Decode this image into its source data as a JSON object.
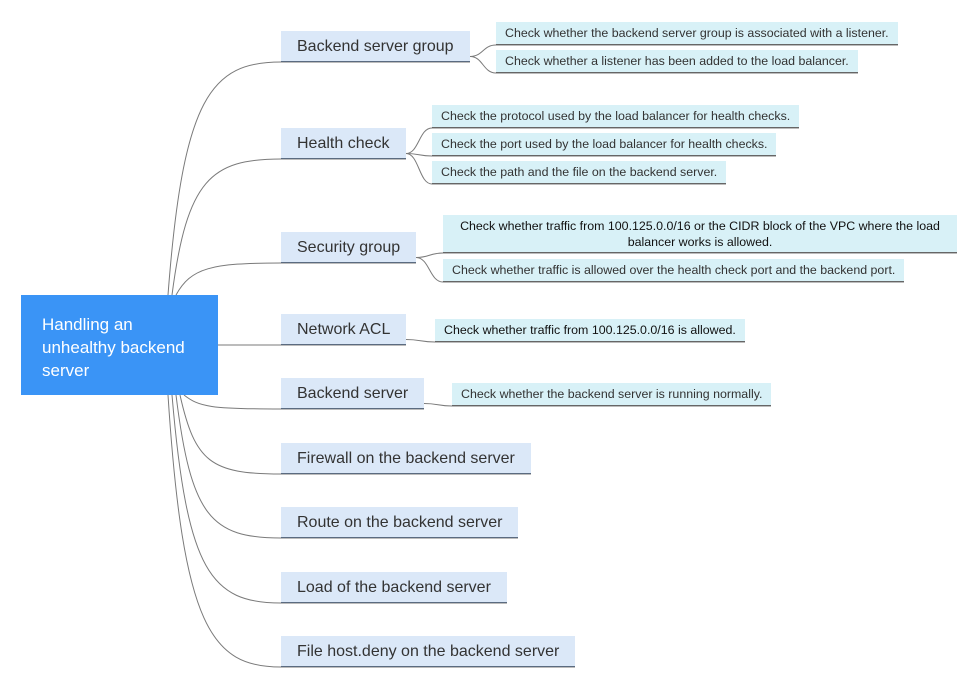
{
  "root": {
    "label": "Handling an unhealthy backend server"
  },
  "branches": [
    {
      "label": "Backend server group",
      "checks": [
        "Check whether the backend server group is associated with a listener.",
        "Check whether a listener has been added to the load balancer."
      ]
    },
    {
      "label": "Health check",
      "checks": [
        "Check the protocol used by the load balancer for health checks.",
        "Check the port used by the load balancer for health checks.",
        "Check the path and the file on the backend server."
      ]
    },
    {
      "label": "Security group",
      "checks": [
        "Check whether traffic from 100.125.0.0/16 or the CIDR block of the VPC where the load balancer works is allowed.",
        "Check whether traffic is allowed over the health check port and the backend port."
      ]
    },
    {
      "label": "Network ACL",
      "checks": [
        "Check whether traffic from 100.125.0.0/16 is allowed."
      ]
    },
    {
      "label": "Backend server",
      "checks": [
        "Check whether the backend server is running normally."
      ]
    },
    {
      "label": "Firewall on the backend server",
      "checks": []
    },
    {
      "label": "Route on the backend server",
      "checks": []
    },
    {
      "label": "Load of the backend server",
      "checks": []
    },
    {
      "label": "File host.deny on the backend server",
      "checks": []
    }
  ],
  "colors": {
    "root_bg": "#3a94f6",
    "branch_bg": "#dbe8f8",
    "leaf_bg": "#d8f1f7",
    "connector": "#7a7a7a"
  }
}
